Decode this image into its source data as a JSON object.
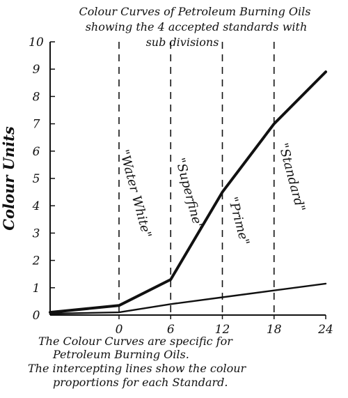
{
  "title_lines": [
    "Colour Curves of Petroleum Burning Oils",
    "showing the 4 accepted standards with",
    "sub divisions"
  ],
  "caption_lines": [
    "The Colour Curves are specific for",
    "Petroleum Burning Oils.",
    "The intercepting lines show the colour",
    "proportions for each Standard."
  ],
  "chart_data": {
    "type": "line",
    "title": "Colour Curves of Petroleum Burning Oils showing the 4 accepted standards with sub divisions",
    "xlabel": "",
    "ylabel": "Colour Units",
    "xlim": [
      -8,
      24
    ],
    "ylim": [
      0,
      10
    ],
    "x_ticks": [
      0,
      6,
      12,
      18,
      24
    ],
    "y_ticks": [
      0,
      1,
      2,
      3,
      4,
      5,
      6,
      7,
      8,
      9,
      10
    ],
    "grid": false,
    "series": [
      {
        "x": [
          -8,
          0,
          6,
          12,
          18,
          24
        ],
        "y": [
          0.1,
          0.35,
          1.3,
          4.5,
          7.0,
          8.9
        ]
      },
      {
        "x": [
          -8,
          0,
          6,
          12,
          18,
          24
        ],
        "y": [
          0.05,
          0.1,
          0.4,
          0.65,
          0.9,
          1.15
        ]
      }
    ],
    "divider_x": [
      0,
      6,
      12,
      18
    ],
    "bands": [
      {
        "label": "\"Water White\"",
        "x_center": 0,
        "y_center": 4.4
      },
      {
        "label": "\"Superfine\"",
        "x_center": 6,
        "y_center": 4.4
      },
      {
        "label": "\"Prime\"",
        "x_center": 12,
        "y_center": 3.4
      },
      {
        "label": "\"Standard\"",
        "x_center": 18,
        "y_center": 5.0
      }
    ]
  }
}
